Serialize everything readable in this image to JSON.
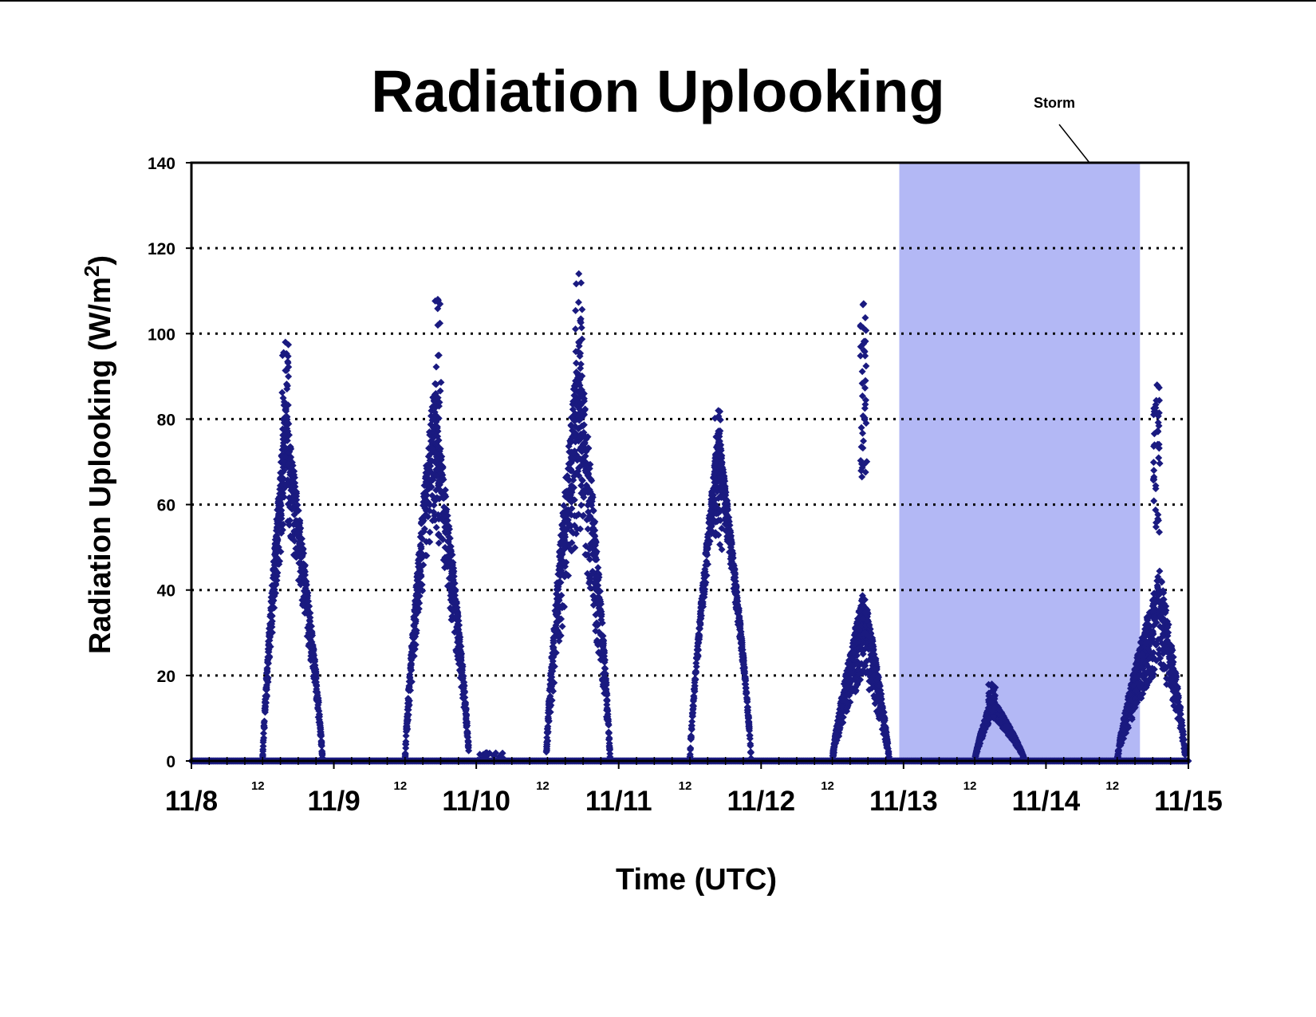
{
  "chart_data": {
    "type": "scatter",
    "title": "Radiation Uplooking",
    "xlabel": "Time (UTC)",
    "ylabel": "Radiation Uplooking (W/m",
    "ylabel_superscript": "2",
    "ylabel_suffix": ")",
    "ylim": [
      0,
      140
    ],
    "yticks": [
      0,
      20,
      40,
      60,
      80,
      100,
      120,
      140
    ],
    "xlim": [
      0,
      7
    ],
    "xtick_labels": [
      "11/8",
      "11/9",
      "11/10",
      "11/11",
      "11/12",
      "11/13",
      "11/14",
      "11/15"
    ],
    "minor_tick_label": "12",
    "grid": "horizontal dotted",
    "marker": "diamond",
    "series_color": "#1a1a80",
    "shaded_region": {
      "label": "Storm",
      "x_start": 4.97,
      "x_end": 6.66,
      "color": "#b3b8f5"
    },
    "days": [
      {
        "start": 0.5,
        "end": 0.92,
        "peak_x": 0.66,
        "peak": 84,
        "max": 98,
        "spread": 0.3,
        "spike_x": 0.66
      },
      {
        "start": 1.5,
        "end": 1.95,
        "peak_x": 1.7,
        "peak": 88,
        "max": 108,
        "spread": 0.35,
        "spike_x": 1.73
      },
      {
        "start": 2.49,
        "end": 2.94,
        "peak_x": 2.72,
        "peak": 100,
        "max": 114,
        "spread": 0.45,
        "spike_x": 2.72
      },
      {
        "start": 3.5,
        "end": 3.93,
        "peak_x": 3.7,
        "peak": 78,
        "max": 82,
        "spread": 0.15,
        "spike_x": 3.7
      },
      {
        "start": 4.5,
        "end": 4.9,
        "peak_x": 4.72,
        "peak": 40,
        "max": 107,
        "spread": 0.5,
        "spike_x": 4.72
      },
      {
        "start": 5.5,
        "end": 5.85,
        "peak_x": 5.62,
        "peak": 15,
        "max": 18,
        "spread": 0.3,
        "spike_x": 5.62
      },
      {
        "start": 6.5,
        "end": 6.98,
        "peak_x": 6.8,
        "peak": 45,
        "max": 88,
        "spread": 0.5,
        "spike_x": 6.78
      }
    ],
    "minor_bumps": [
      {
        "x_start": 2.0,
        "x_end": 2.2,
        "max": 2
      }
    ]
  }
}
